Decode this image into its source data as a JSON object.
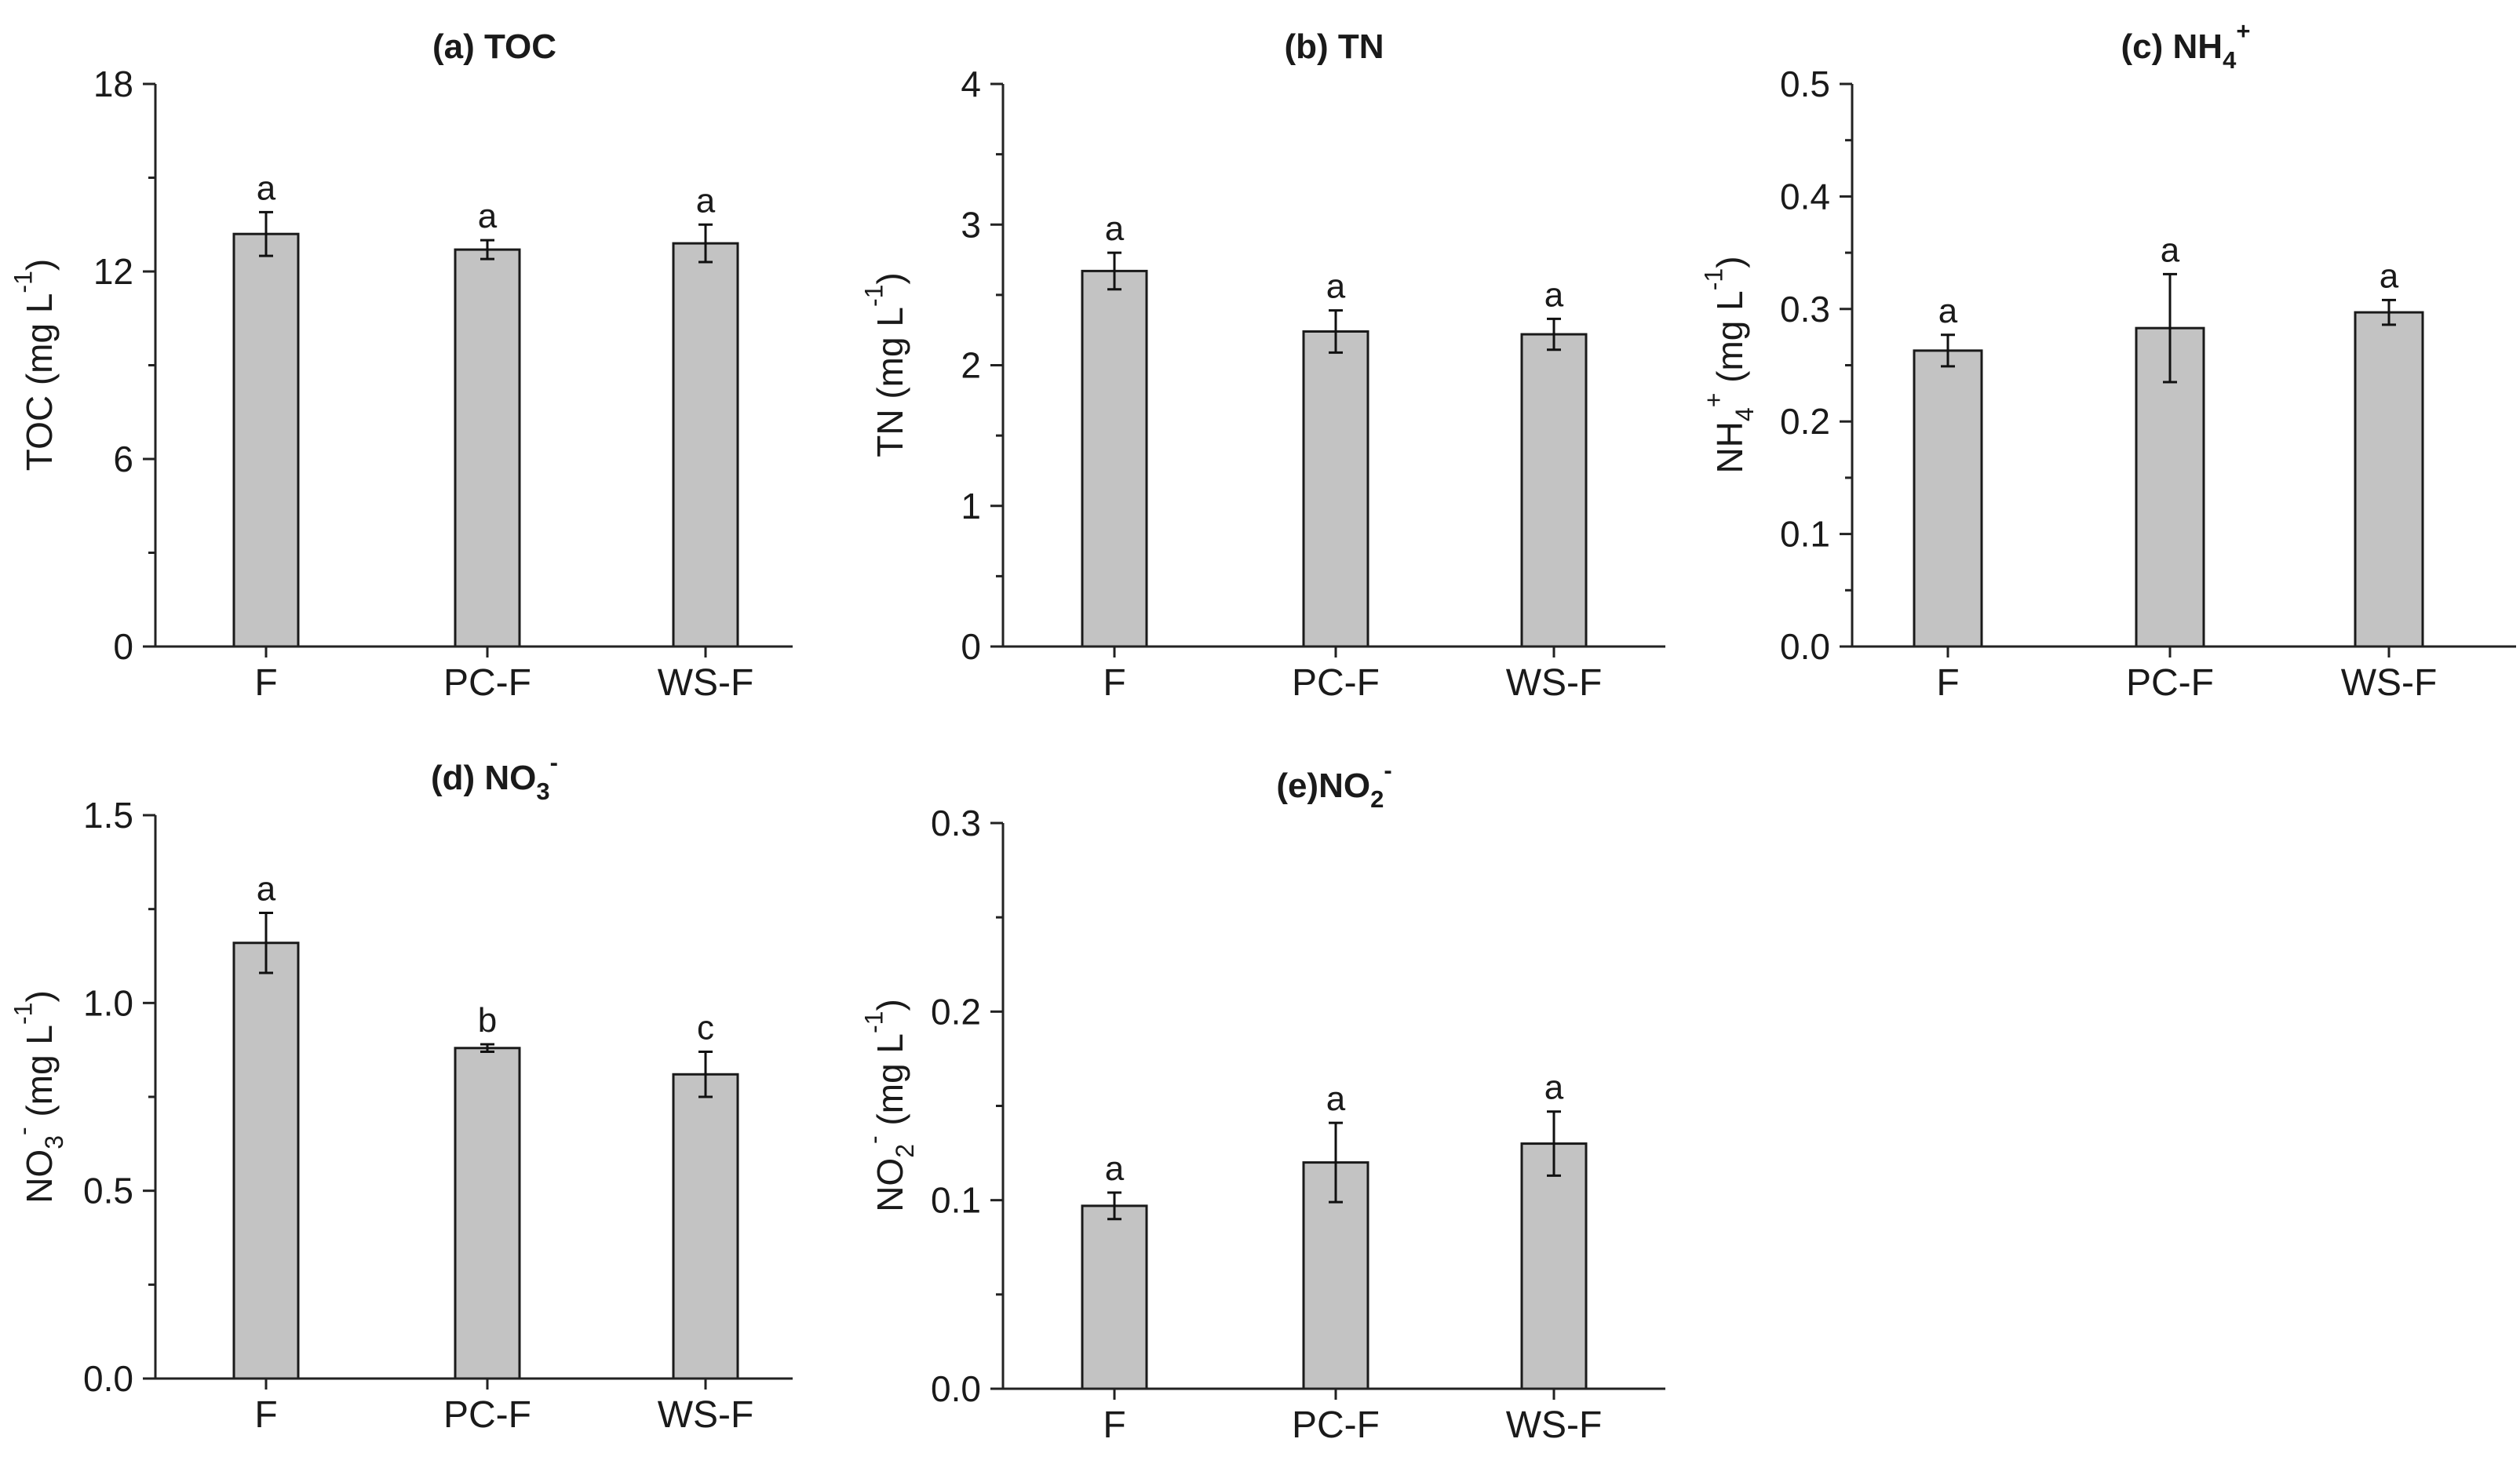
{
  "colors": {
    "bar_fill": "#c3c3c3",
    "bar_stroke": "#1a1a1a",
    "axis": "#222222"
  },
  "chart_data": [
    {
      "id": "a",
      "type": "bar",
      "title": "(a) TOC",
      "title_parts": [
        [
          "(a) TOC",
          "n"
        ]
      ],
      "ylabel_parts": [
        [
          "TOC (mg L",
          "n"
        ],
        [
          "-1",
          "sup"
        ],
        [
          ")",
          "n"
        ]
      ],
      "categories": [
        "F",
        "PC-F",
        "WS-F"
      ],
      "values": [
        13.2,
        12.7,
        12.9
      ],
      "errors": [
        0.7,
        0.3,
        0.6
      ],
      "letters": [
        "a",
        "a",
        "a"
      ],
      "ylim": [
        0,
        18
      ],
      "ticks": [
        0,
        6,
        12,
        18
      ],
      "tick_labels": [
        "0",
        "6",
        "12",
        "18"
      ]
    },
    {
      "id": "b",
      "type": "bar",
      "title": "(b) TN",
      "title_parts": [
        [
          "(b) TN",
          "n"
        ]
      ],
      "ylabel_parts": [
        [
          "TN (mg L",
          "n"
        ],
        [
          "-1",
          "sup"
        ],
        [
          ")",
          "n"
        ]
      ],
      "categories": [
        "F",
        "PC-F",
        "WS-F"
      ],
      "values": [
        2.67,
        2.24,
        2.22
      ],
      "errors": [
        0.13,
        0.15,
        0.11
      ],
      "letters": [
        "a",
        "a",
        "a"
      ],
      "ylim": [
        0,
        4
      ],
      "ticks": [
        0,
        1,
        2,
        3,
        4
      ],
      "tick_labels": [
        "0",
        "1",
        "2",
        "3",
        "4"
      ]
    },
    {
      "id": "c",
      "type": "bar",
      "title": "(c) NH4+",
      "title_parts": [
        [
          "(c) NH",
          "n"
        ],
        [
          "4",
          "sub"
        ],
        [
          "+",
          "sup"
        ]
      ],
      "ylabel_parts": [
        [
          "NH",
          "n"
        ],
        [
          "4",
          "sub"
        ],
        [
          "+",
          "sup"
        ],
        [
          " (mg L",
          "n"
        ],
        [
          "-1",
          "sup"
        ],
        [
          ")",
          "n"
        ]
      ],
      "categories": [
        "F",
        "PC-F",
        "WS-F"
      ],
      "values": [
        0.263,
        0.283,
        0.297
      ],
      "errors": [
        0.014,
        0.048,
        0.011
      ],
      "letters": [
        "a",
        "a",
        "a"
      ],
      "ylim": [
        0,
        0.5
      ],
      "ticks": [
        0,
        0.1,
        0.2,
        0.3,
        0.4,
        0.5
      ],
      "tick_labels": [
        "0.0",
        "0.1",
        "0.2",
        "0.3",
        "0.4",
        "0.5"
      ]
    },
    {
      "id": "d",
      "type": "bar",
      "title": "(d) NO3-",
      "title_parts": [
        [
          "(d) NO",
          "n"
        ],
        [
          "3",
          "sub"
        ],
        [
          "-",
          "sup"
        ]
      ],
      "ylabel_parts": [
        [
          "NO",
          "n"
        ],
        [
          "3",
          "sub"
        ],
        [
          "-",
          "sup"
        ],
        [
          " (mg L",
          "n"
        ],
        [
          "-1",
          "sup"
        ],
        [
          ")",
          "n"
        ]
      ],
      "categories": [
        "F",
        "PC-F",
        "WS-F"
      ],
      "values": [
        1.16,
        0.88,
        0.81
      ],
      "errors": [
        0.08,
        0.01,
        0.06
      ],
      "letters": [
        "a",
        "b",
        "c"
      ],
      "ylim": [
        0,
        1.5
      ],
      "ticks": [
        0,
        0.5,
        1.0,
        1.5
      ],
      "tick_labels": [
        "0.0",
        "0.5",
        "1.0",
        "1.5"
      ]
    },
    {
      "id": "e",
      "type": "bar",
      "title": "(e)NO2-",
      "title_parts": [
        [
          "(e)NO",
          "n"
        ],
        [
          "2",
          "sub"
        ],
        [
          "-",
          "sup"
        ]
      ],
      "ylabel_parts": [
        [
          "NO",
          "n"
        ],
        [
          "2",
          "sub"
        ],
        [
          "-",
          "sup"
        ],
        [
          " (mg L",
          "n"
        ],
        [
          "-1",
          "sup"
        ],
        [
          ")",
          "n"
        ]
      ],
      "categories": [
        "F",
        "PC-F",
        "WS-F"
      ],
      "values": [
        0.097,
        0.12,
        0.13
      ],
      "errors": [
        0.007,
        0.021,
        0.017
      ],
      "letters": [
        "a",
        "a",
        "a"
      ],
      "ylim": [
        0,
        0.3
      ],
      "ticks": [
        0,
        0.1,
        0.2,
        0.3
      ],
      "tick_labels": [
        "0.0",
        "0.1",
        "0.2",
        "0.3"
      ]
    }
  ]
}
